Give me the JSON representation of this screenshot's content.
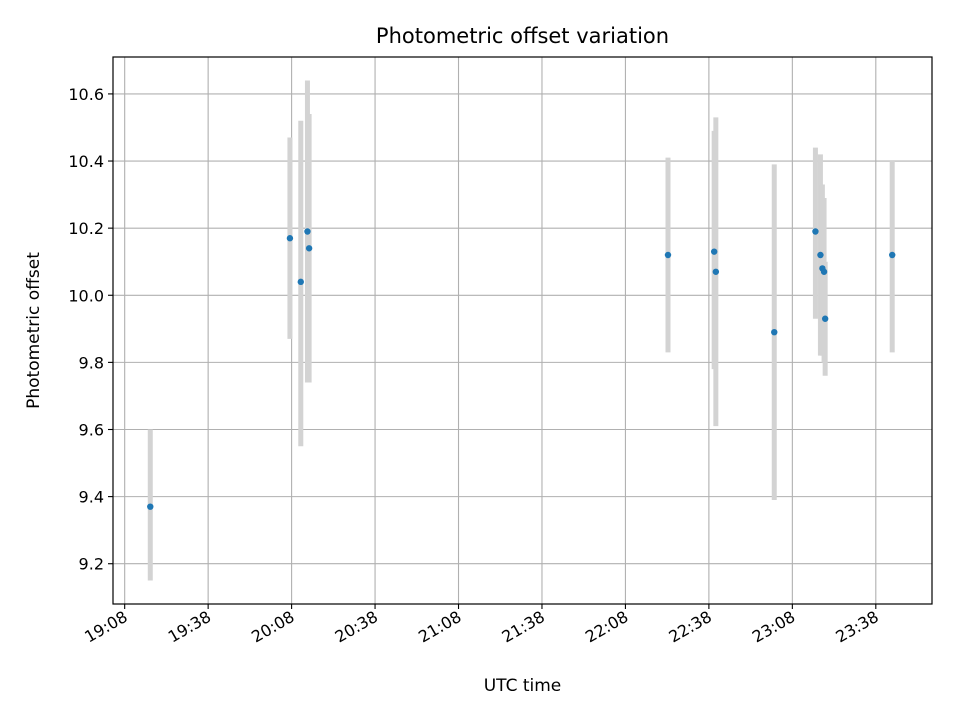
{
  "chart_data": {
    "type": "scatter",
    "title": "Photometric offset variation",
    "xlabel": "UTC time",
    "ylabel": "Photometric offset",
    "x_tick_labels": [
      "19:08",
      "19:38",
      "20:08",
      "20:38",
      "21:08",
      "21:38",
      "22:08",
      "22:38",
      "23:08",
      "23:38"
    ],
    "x_tick_minutes": [
      1148,
      1178,
      1208,
      1238,
      1268,
      1298,
      1328,
      1358,
      1388,
      1418
    ],
    "xlim_minutes": [
      1143.8,
      1438.2
    ],
    "y_ticks": [
      9.2,
      9.4,
      9.6,
      9.8,
      10.0,
      10.2,
      10.4,
      10.6
    ],
    "y_tick_labels": [
      "9.2",
      "9.4",
      "9.6",
      "9.8",
      "10.0",
      "10.2",
      "10.4",
      "10.6"
    ],
    "ylim": [
      9.08,
      10.71
    ],
    "grid": true,
    "point_color": "#1f77b4",
    "errorbar_color": "#d3d3d3",
    "points": [
      {
        "t": 1157.2,
        "y": 9.37,
        "lo": 9.15,
        "hi": 9.6
      },
      {
        "t": 1207.4,
        "y": 10.17,
        "lo": 9.87,
        "hi": 10.47
      },
      {
        "t": 1211.3,
        "y": 10.04,
        "lo": 9.55,
        "hi": 10.52
      },
      {
        "t": 1213.7,
        "y": 10.19,
        "lo": 9.74,
        "hi": 10.64
      },
      {
        "t": 1214.3,
        "y": 10.14,
        "lo": 9.74,
        "hi": 10.54
      },
      {
        "t": 1343.3,
        "y": 10.12,
        "lo": 9.83,
        "hi": 10.41
      },
      {
        "t": 1359.9,
        "y": 10.13,
        "lo": 9.78,
        "hi": 10.49
      },
      {
        "t": 1360.5,
        "y": 10.07,
        "lo": 9.61,
        "hi": 10.53
      },
      {
        "t": 1381.5,
        "y": 9.89,
        "lo": 9.39,
        "hi": 10.39
      },
      {
        "t": 1396.3,
        "y": 10.19,
        "lo": 9.93,
        "hi": 10.44
      },
      {
        "t": 1398.1,
        "y": 10.12,
        "lo": 9.82,
        "hi": 10.42
      },
      {
        "t": 1398.8,
        "y": 10.08,
        "lo": 9.82,
        "hi": 10.33
      },
      {
        "t": 1399.4,
        "y": 10.07,
        "lo": 9.8,
        "hi": 10.29
      },
      {
        "t": 1399.8,
        "y": 9.93,
        "lo": 9.76,
        "hi": 10.1
      },
      {
        "t": 1423.9,
        "y": 10.12,
        "lo": 9.83,
        "hi": 10.4
      }
    ]
  }
}
